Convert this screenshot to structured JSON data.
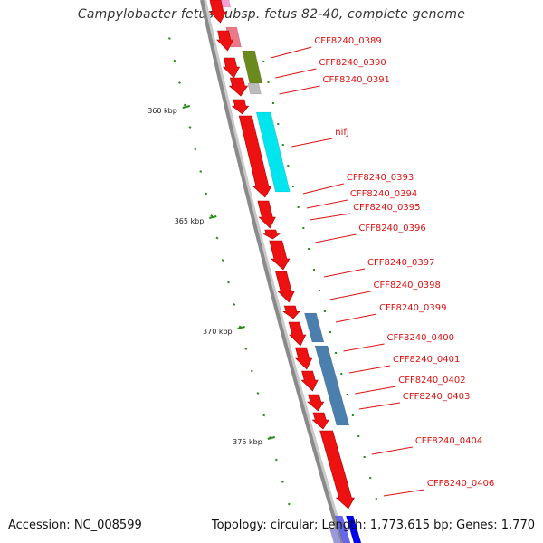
{
  "title": "Campylobacter fetus subsp. fetus 82-40, complete genome",
  "footer": {
    "accession_label": "Accession: NC_008599",
    "topology_label": "Topology: circular; Length: 1,773,615 bp; Genes: 1,770"
  },
  "colors": {
    "backbone": "#8a8a8a",
    "gene": "#ee1111",
    "label": "#dd1111",
    "tick": "#2a8a1a",
    "cyan_feature": "#00e5ee",
    "olive_feature": "#6b8a1e",
    "steelblue_feature": "#4a7fae",
    "pink_feature": "#e87a8a"
  },
  "scale_labels": [
    "360 kbp",
    "365 kbp",
    "370 kbp",
    "375 kbp"
  ],
  "gene_labels": [
    "CFF8240_0389",
    "CFF8240_0390",
    "CFF8240_0391",
    "nifJ",
    "CFF8240_0393",
    "CFF8240_0394",
    "CFF8240_0395",
    "CFF8240_0396",
    "CFF8240_0397",
    "CFF8240_0398",
    "CFF8240_0399",
    "CFF8240_0400",
    "CFF8240_0401",
    "CFF8240_0402",
    "CFF8240_0403",
    "CFF8240_0404",
    "CFF8240_0406"
  ]
}
